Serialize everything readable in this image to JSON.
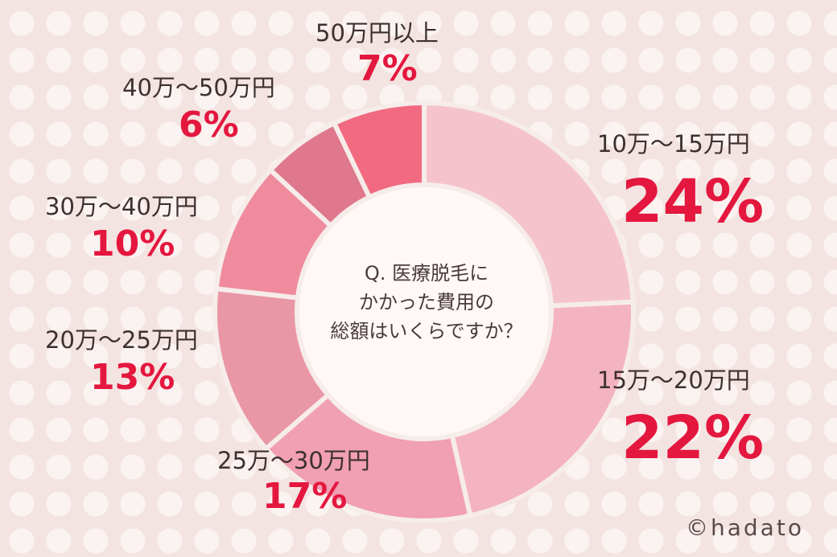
{
  "chart_data": {
    "type": "pie",
    "question_lines": [
      "Q. 医療脱毛に",
      "かかった費用の",
      "総額はいくらですか？"
    ],
    "slices": [
      {
        "label": "10万〜15万円",
        "value": 24,
        "display": "24%",
        "color": "#f5c3ce"
      },
      {
        "label": "15万〜20万円",
        "value": 22,
        "display": "22%",
        "color": "#f4b3c1"
      },
      {
        "label": "25万〜30万円",
        "value": 17,
        "display": "17%",
        "color": "#f19fb2"
      },
      {
        "label": "20万〜25万円",
        "value": 13,
        "display": "13%",
        "color": "#e996a6"
      },
      {
        "label": "30万〜40万円",
        "value": 10,
        "display": "10%",
        "color": "#ef8b9c"
      },
      {
        "label": "40万〜50万円",
        "value": 6,
        "display": "6%",
        "color": "#df788c"
      },
      {
        "label": "50万円以上",
        "value": 7,
        "display": "7%",
        "color": "#f16a80"
      }
    ]
  },
  "credit": "©hadato"
}
